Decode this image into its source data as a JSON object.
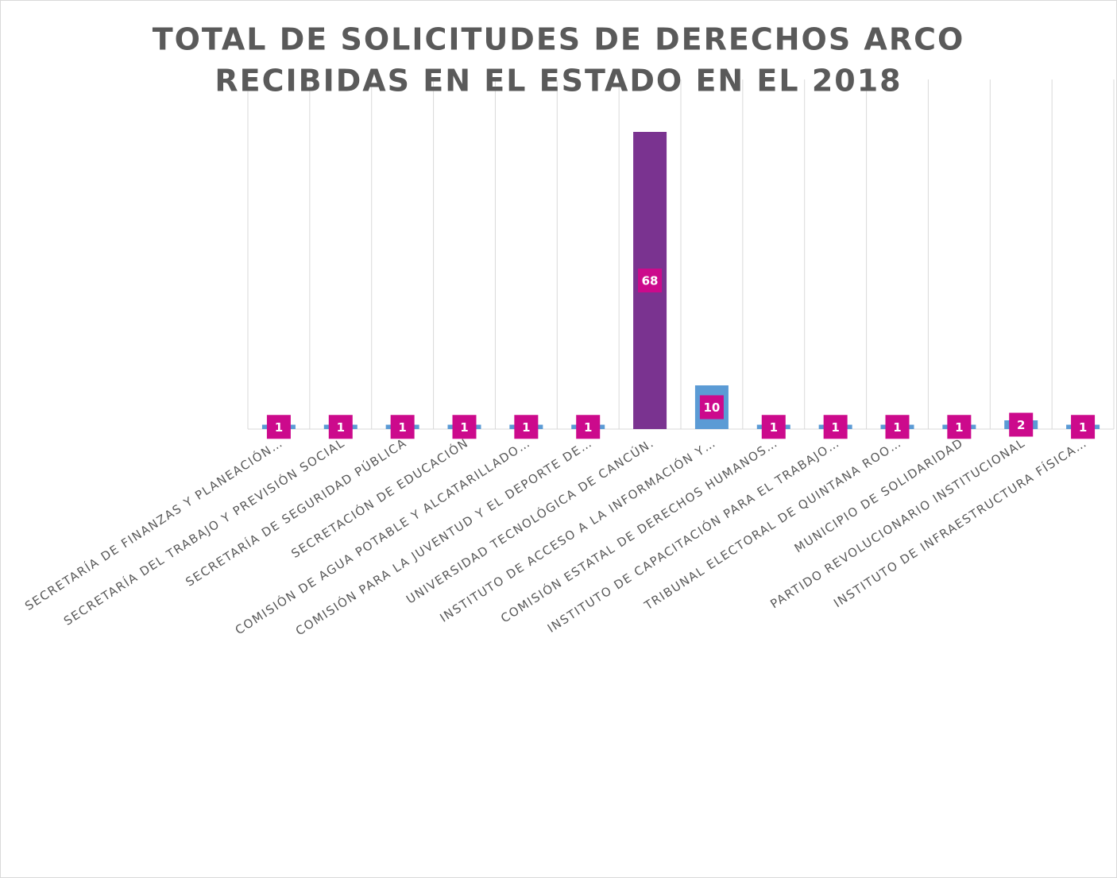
{
  "chart_data": {
    "type": "bar",
    "title": [
      "TOTAL DE SOLICITUDES DE DERECHOS ARCO",
      "RECIBIDAS EN EL ESTADO EN EL 2018"
    ],
    "categories": [
      "SECRETARÍA DE FINANZAS Y PLANEACIÓN…",
      "SECRETARÍA DEL TRABAJO Y PREVISIÓN SOCIAL",
      "SECRETARÍA DE SEGURIDAD PÚBLICA",
      "SECRETACIÓN DE EDUCACIÓN",
      "COMISIÓN DE AGUA POTABLE Y ALCATARILLADO…",
      "COMISIÓN PARA LA JUVENTUD Y EL DEPORTE DE…",
      "UNIVERSIDAD TECNOLÓGICA DE CANCÚN.",
      "INSTITUTO DE ACCESO  A LA INFORMACIÓN Y…",
      "COMISIÓN ESTATAL DE DERECHOS HUMANOS…",
      "INSTITUTO DE CAPACITACIÓN PARA EL TRABAJO…",
      "TRIBUNAL ELECTORAL DE QUINTANA ROO…",
      "MUNICIPIO DE SOLIDARIDAD",
      "PARTIDO REVOLUCIONARIO INSTITUCIONAL",
      "INSTITUTO DE INFRAESTRUCTURA FÍSICA…"
    ],
    "values": [
      1,
      1,
      1,
      1,
      1,
      1,
      68,
      10,
      1,
      1,
      1,
      1,
      2,
      1
    ],
    "colors": [
      "#5b9bd5",
      "#5b9bd5",
      "#5b9bd5",
      "#5b9bd5",
      "#5b9bd5",
      "#5b9bd5",
      "#7a3390",
      "#5b9bd5",
      "#5b9bd5",
      "#5b9bd5",
      "#5b9bd5",
      "#5b9bd5",
      "#5b9bd5",
      "#5b9bd5"
    ],
    "label_color": "#cc0a8c",
    "ylim": [
      0,
      80
    ]
  }
}
